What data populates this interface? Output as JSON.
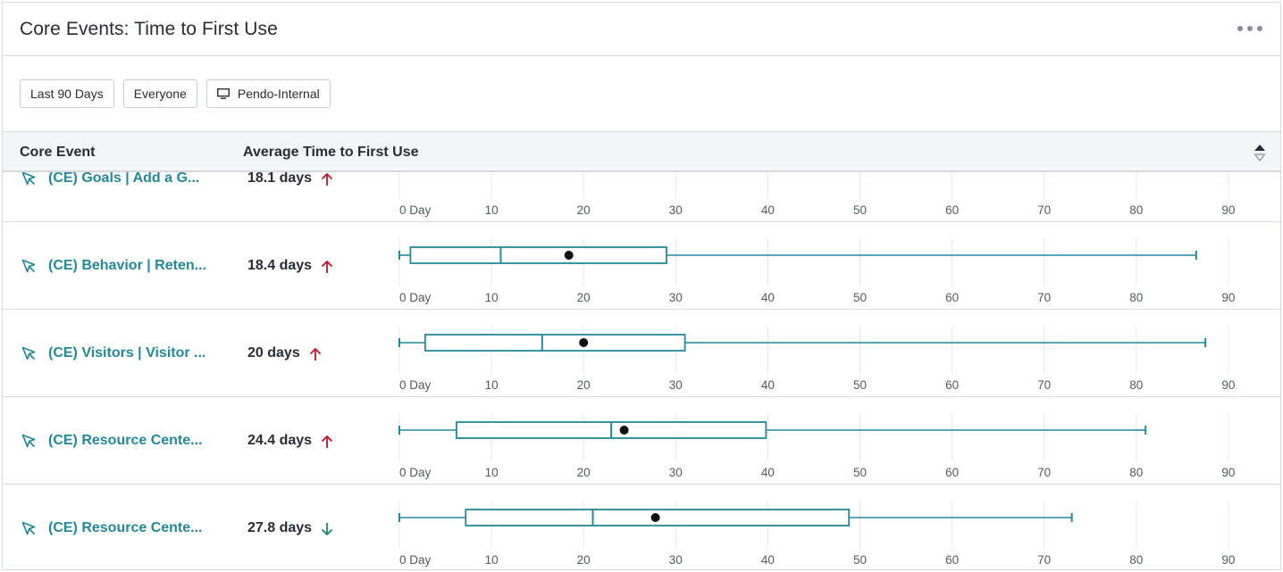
{
  "header": {
    "title": "Core Events: Time to First Use"
  },
  "filters": [
    {
      "label": "Last 90 Days",
      "icon": ""
    },
    {
      "label": "Everyone",
      "icon": ""
    },
    {
      "label": "Pendo-Internal",
      "icon": "monitor-icon"
    }
  ],
  "table": {
    "columns": {
      "event": "Core Event",
      "avg": "Average Time to First Use"
    },
    "axis_ticks": [
      "0 Day",
      "10",
      "20",
      "30",
      "40",
      "50",
      "60",
      "70",
      "80",
      "90"
    ],
    "rows": [
      {
        "name": "(CE) Goals | Add a G...",
        "avg": "18.1 days",
        "trend": "up",
        "box": null
      },
      {
        "name": "(CE) Behavior | Reten...",
        "avg": "18.4 days",
        "trend": "up",
        "box": {
          "min": 0,
          "q1": 1.2,
          "median": 11,
          "mean": 18.4,
          "q3": 29,
          "max": 86.5
        }
      },
      {
        "name": "(CE) Visitors | Visitor ...",
        "avg": "20 days",
        "trend": "up",
        "box": {
          "min": 0,
          "q1": 2.8,
          "median": 15.5,
          "mean": 20,
          "q3": 31,
          "max": 87.5
        }
      },
      {
        "name": "(CE) Resource Cente...",
        "avg": "24.4 days",
        "trend": "up",
        "box": {
          "min": 0,
          "q1": 6.2,
          "median": 23,
          "mean": 24.4,
          "q3": 39.8,
          "max": 81
        }
      },
      {
        "name": "(CE) Resource Cente...",
        "avg": "27.8 days",
        "trend": "down",
        "box": {
          "min": 0,
          "q1": 7.2,
          "median": 21,
          "mean": 27.8,
          "q3": 48.8,
          "max": 73
        }
      }
    ]
  },
  "colors": {
    "accent": "#23899a",
    "up": "#c8102e",
    "down": "#1a8a5c",
    "box": "#23899a"
  }
}
